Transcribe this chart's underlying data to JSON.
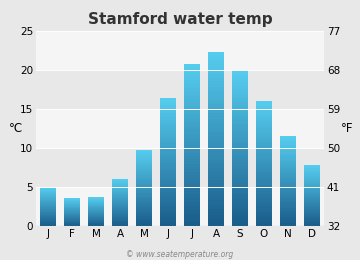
{
  "title": "Stamford water temp",
  "months": [
    "J",
    "F",
    "M",
    "A",
    "M",
    "J",
    "J",
    "A",
    "S",
    "O",
    "N",
    "D"
  ],
  "values_c": [
    5.0,
    3.6,
    3.7,
    6.1,
    9.8,
    16.4,
    20.8,
    22.3,
    19.9,
    16.0,
    11.5,
    7.8
  ],
  "ylabel_left": "°C",
  "ylabel_right": "°F",
  "yticks_c": [
    0,
    5,
    10,
    15,
    20,
    25
  ],
  "yticks_f": [
    32,
    41,
    50,
    59,
    68,
    77
  ],
  "ylim_c": [
    0,
    25
  ],
  "bar_color_top": "#55ccee",
  "bar_color_bottom": "#1a5c8a",
  "bg_color": "#e8e8e8",
  "band_colors": [
    "#f5f5f5",
    "#e8e8e8"
  ],
  "watermark": "© www.seatemperature.org",
  "title_fontsize": 11,
  "tick_fontsize": 7.5,
  "label_fontsize": 8.5
}
